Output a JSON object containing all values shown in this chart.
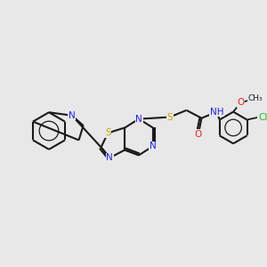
{
  "bg": "#e8e8e8",
  "bond_color": "#1a1a1a",
  "atom_colors": {
    "N": "#2020ff",
    "O": "#ee2020",
    "S": "#bbaa00",
    "Cl": "#22bb22",
    "C": "#1a1a1a"
  },
  "lw": 1.5,
  "fs": 7.5,
  "xlim": [
    0,
    10
  ],
  "ylim": [
    0,
    10
  ]
}
